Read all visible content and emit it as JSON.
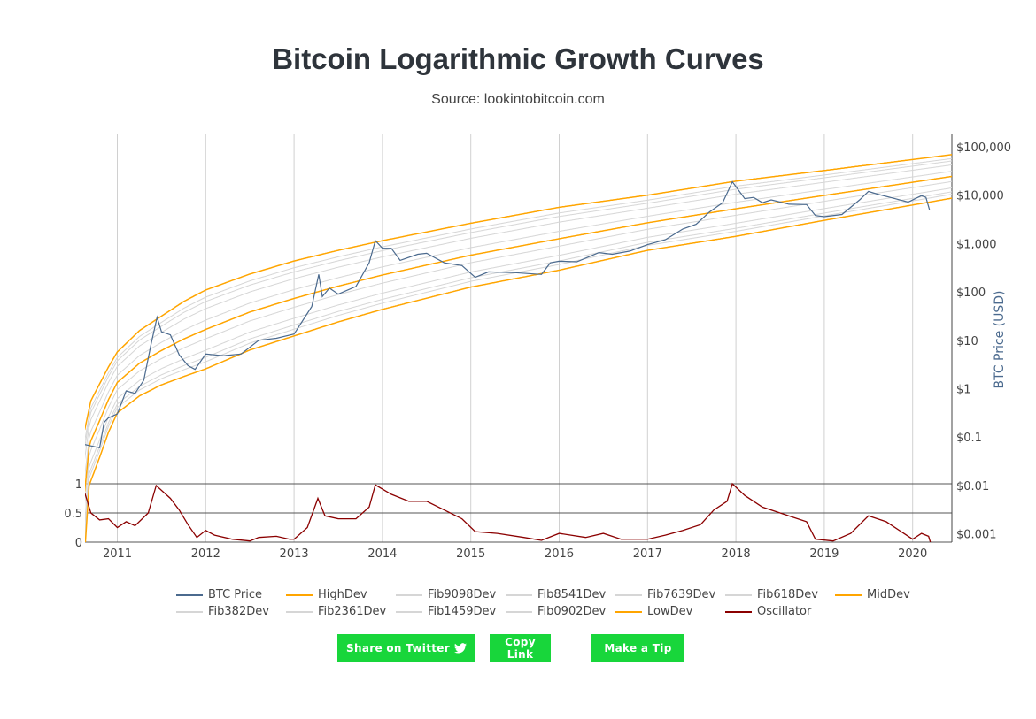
{
  "header": {
    "title": "Bitcoin Logarithmic Growth Curves",
    "subtitle": "Source: lookintobitcoin.com"
  },
  "buttons": {
    "twitter": "Share on Twitter",
    "twitter_icon": "twitter-bird-icon",
    "copy": "Copy Link",
    "tip": "Make a Tip",
    "color": "#18d63b"
  },
  "chart_data": {
    "type": "line",
    "title": "Bitcoin Logarithmic Growth Curves",
    "ylabel": "BTC Price (USD)",
    "yscale": "log",
    "x_ticks": [
      "2011",
      "2012",
      "2013",
      "2014",
      "2015",
      "2016",
      "2017",
      "2018",
      "2019",
      "2020"
    ],
    "xlim": [
      2010.63,
      2020.45
    ],
    "y_ticks": [
      {
        "v": 100000,
        "label": "$100,000"
      },
      {
        "v": 10000,
        "label": "$10,000"
      },
      {
        "v": 1000,
        "label": "$1,000"
      },
      {
        "v": 100,
        "label": "$100"
      },
      {
        "v": 10,
        "label": "$10"
      },
      {
        "v": 1,
        "label": "$1"
      },
      {
        "v": 0.1,
        "label": "$0.1"
      },
      {
        "v": 0.01,
        "label": "$0.01"
      },
      {
        "v": 0.001,
        "label": "$0.001"
      }
    ],
    "osc_ticks": [
      {
        "v": 1,
        "label": "1"
      },
      {
        "v": 0.5,
        "label": "0.5"
      },
      {
        "v": 0,
        "label": "0"
      }
    ],
    "grid": true,
    "legend_position": "bottom",
    "colors": {
      "price": "#4b6a8e",
      "dev": "#ffa500",
      "fib": "#d6d6d6",
      "osc": "#8b0000"
    },
    "bands_log10": {
      "HighDev": [
        [
          2010.63,
          -0.85
        ],
        [
          2010.7,
          -0.25
        ],
        [
          2010.8,
          0.1
        ],
        [
          2010.9,
          0.45
        ],
        [
          2011,
          0.76
        ],
        [
          2011.25,
          1.2
        ],
        [
          2011.5,
          1.5
        ],
        [
          2011.75,
          1.8
        ],
        [
          2012,
          2.04
        ],
        [
          2012.5,
          2.37
        ],
        [
          2013,
          2.64
        ],
        [
          2013.5,
          2.86
        ],
        [
          2014,
          3.06
        ],
        [
          2015,
          3.42
        ],
        [
          2016,
          3.75
        ],
        [
          2017,
          4.0
        ],
        [
          2018,
          4.29
        ],
        [
          2019,
          4.51
        ],
        [
          2020.45,
          4.84
        ]
      ],
      "LowDev": [
        [
          2010.63,
          -3.4
        ],
        [
          2010.68,
          -2.0
        ],
        [
          2010.8,
          -1.42
        ],
        [
          2010.9,
          -0.9
        ],
        [
          2011,
          -0.5
        ],
        [
          2011.25,
          -0.15
        ],
        [
          2011.5,
          0.08
        ],
        [
          2011.75,
          0.25
        ],
        [
          2012,
          0.41
        ],
        [
          2012.5,
          0.8
        ],
        [
          2013,
          1.09
        ],
        [
          2013.5,
          1.38
        ],
        [
          2014,
          1.64
        ],
        [
          2015,
          2.1
        ],
        [
          2016,
          2.45
        ],
        [
          2017,
          2.86
        ],
        [
          2018,
          3.15
        ],
        [
          2019,
          3.48
        ],
        [
          2020.45,
          3.94
        ]
      ]
    },
    "fib_levels": [
      {
        "name": "Fib9098Dev",
        "f": 0.9098
      },
      {
        "name": "Fib8541Dev",
        "f": 0.8541
      },
      {
        "name": "Fib7639Dev",
        "f": 0.7639
      },
      {
        "name": "Fib618Dev",
        "f": 0.618
      },
      {
        "name": "MidDev",
        "f": 0.5
      },
      {
        "name": "Fib382Dev",
        "f": 0.382
      },
      {
        "name": "Fib2361Dev",
        "f": 0.2361
      },
      {
        "name": "Fib1459Dev",
        "f": 0.1459
      },
      {
        "name": "Fib0902Dev",
        "f": 0.0902
      }
    ],
    "btc_price": [
      [
        2010.63,
        0.07
      ],
      [
        2010.8,
        0.06
      ],
      [
        2010.85,
        0.2
      ],
      [
        2010.9,
        0.25
      ],
      [
        2011.0,
        0.3
      ],
      [
        2011.1,
        0.9
      ],
      [
        2011.2,
        0.8
      ],
      [
        2011.3,
        1.5
      ],
      [
        2011.38,
        8
      ],
      [
        2011.45,
        30
      ],
      [
        2011.5,
        15
      ],
      [
        2011.6,
        13
      ],
      [
        2011.7,
        5
      ],
      [
        2011.8,
        3
      ],
      [
        2011.88,
        2.5
      ],
      [
        2012.0,
        5.2
      ],
      [
        2012.2,
        4.8
      ],
      [
        2012.4,
        5.2
      ],
      [
        2012.6,
        10
      ],
      [
        2012.8,
        11
      ],
      [
        2013.0,
        13.5
      ],
      [
        2013.2,
        50
      ],
      [
        2013.28,
        230
      ],
      [
        2013.32,
        80
      ],
      [
        2013.4,
        120
      ],
      [
        2013.5,
        90
      ],
      [
        2013.7,
        130
      ],
      [
        2013.85,
        400
      ],
      [
        2013.92,
        1150
      ],
      [
        2014.0,
        800
      ],
      [
        2014.1,
        800
      ],
      [
        2014.2,
        450
      ],
      [
        2014.4,
        600
      ],
      [
        2014.5,
        630
      ],
      [
        2014.7,
        400
      ],
      [
        2014.9,
        350
      ],
      [
        2015.05,
        200
      ],
      [
        2015.2,
        260
      ],
      [
        2015.5,
        250
      ],
      [
        2015.8,
        230
      ],
      [
        2015.9,
        400
      ],
      [
        2016.0,
        430
      ],
      [
        2016.2,
        420
      ],
      [
        2016.45,
        650
      ],
      [
        2016.6,
        600
      ],
      [
        2016.8,
        700
      ],
      [
        2017.0,
        950
      ],
      [
        2017.2,
        1200
      ],
      [
        2017.4,
        2000
      ],
      [
        2017.55,
        2500
      ],
      [
        2017.7,
        4500
      ],
      [
        2017.85,
        7000
      ],
      [
        2017.96,
        19000
      ],
      [
        2018.1,
        8500
      ],
      [
        2018.2,
        9000
      ],
      [
        2018.3,
        7000
      ],
      [
        2018.4,
        8000
      ],
      [
        2018.6,
        6500
      ],
      [
        2018.8,
        6400
      ],
      [
        2018.9,
        3800
      ],
      [
        2019.0,
        3600
      ],
      [
        2019.2,
        4000
      ],
      [
        2019.4,
        8000
      ],
      [
        2019.5,
        12000
      ],
      [
        2019.6,
        10500
      ],
      [
        2019.8,
        8500
      ],
      [
        2019.95,
        7200
      ],
      [
        2020.1,
        9800
      ],
      [
        2020.15,
        9000
      ],
      [
        2020.19,
        5000
      ]
    ],
    "oscillator": [
      [
        2010.63,
        0.85
      ],
      [
        2010.7,
        0.5
      ],
      [
        2010.8,
        0.38
      ],
      [
        2010.9,
        0.4
      ],
      [
        2011.0,
        0.25
      ],
      [
        2011.1,
        0.35
      ],
      [
        2011.2,
        0.28
      ],
      [
        2011.35,
        0.5
      ],
      [
        2011.44,
        0.97
      ],
      [
        2011.6,
        0.75
      ],
      [
        2011.7,
        0.55
      ],
      [
        2011.8,
        0.3
      ],
      [
        2011.9,
        0.08
      ],
      [
        2012.0,
        0.2
      ],
      [
        2012.1,
        0.12
      ],
      [
        2012.3,
        0.05
      ],
      [
        2012.5,
        0.02
      ],
      [
        2012.6,
        0.08
      ],
      [
        2012.8,
        0.1
      ],
      [
        2012.95,
        0.05
      ],
      [
        2013.0,
        0.05
      ],
      [
        2013.15,
        0.25
      ],
      [
        2013.27,
        0.75
      ],
      [
        2013.35,
        0.45
      ],
      [
        2013.5,
        0.4
      ],
      [
        2013.7,
        0.4
      ],
      [
        2013.85,
        0.6
      ],
      [
        2013.92,
        0.98
      ],
      [
        2014.1,
        0.82
      ],
      [
        2014.3,
        0.7
      ],
      [
        2014.5,
        0.7
      ],
      [
        2014.7,
        0.55
      ],
      [
        2014.9,
        0.4
      ],
      [
        2015.05,
        0.18
      ],
      [
        2015.3,
        0.15
      ],
      [
        2015.6,
        0.08
      ],
      [
        2015.8,
        0.03
      ],
      [
        2016.0,
        0.15
      ],
      [
        2016.3,
        0.08
      ],
      [
        2016.5,
        0.15
      ],
      [
        2016.7,
        0.05
      ],
      [
        2017.0,
        0.05
      ],
      [
        2017.2,
        0.12
      ],
      [
        2017.4,
        0.2
      ],
      [
        2017.6,
        0.3
      ],
      [
        2017.75,
        0.55
      ],
      [
        2017.9,
        0.7
      ],
      [
        2017.96,
        1.0
      ],
      [
        2018.1,
        0.8
      ],
      [
        2018.3,
        0.6
      ],
      [
        2018.5,
        0.5
      ],
      [
        2018.8,
        0.35
      ],
      [
        2018.9,
        0.05
      ],
      [
        2019.1,
        0.02
      ],
      [
        2019.3,
        0.15
      ],
      [
        2019.5,
        0.45
      ],
      [
        2019.7,
        0.35
      ],
      [
        2019.9,
        0.15
      ],
      [
        2020.0,
        0.05
      ],
      [
        2020.1,
        0.15
      ],
      [
        2020.18,
        0.1
      ],
      [
        2020.2,
        0.0
      ]
    ],
    "legend": [
      {
        "name": "BTC Price",
        "color": "#4b6a8e"
      },
      {
        "name": "HighDev",
        "color": "#ffa500"
      },
      {
        "name": "Fib9098Dev",
        "color": "#d6d6d6"
      },
      {
        "name": "Fib8541Dev",
        "color": "#d6d6d6"
      },
      {
        "name": "Fib7639Dev",
        "color": "#d6d6d6"
      },
      {
        "name": "Fib618Dev",
        "color": "#d6d6d6"
      },
      {
        "name": "MidDev",
        "color": "#ffa500"
      },
      {
        "name": "Fib382Dev",
        "color": "#d6d6d6"
      },
      {
        "name": "Fib2361Dev",
        "color": "#d6d6d6"
      },
      {
        "name": "Fib1459Dev",
        "color": "#d6d6d6"
      },
      {
        "name": "Fib0902Dev",
        "color": "#d6d6d6"
      },
      {
        "name": "LowDev",
        "color": "#ffa500"
      },
      {
        "name": "Oscillator",
        "color": "#8b0000"
      }
    ]
  }
}
